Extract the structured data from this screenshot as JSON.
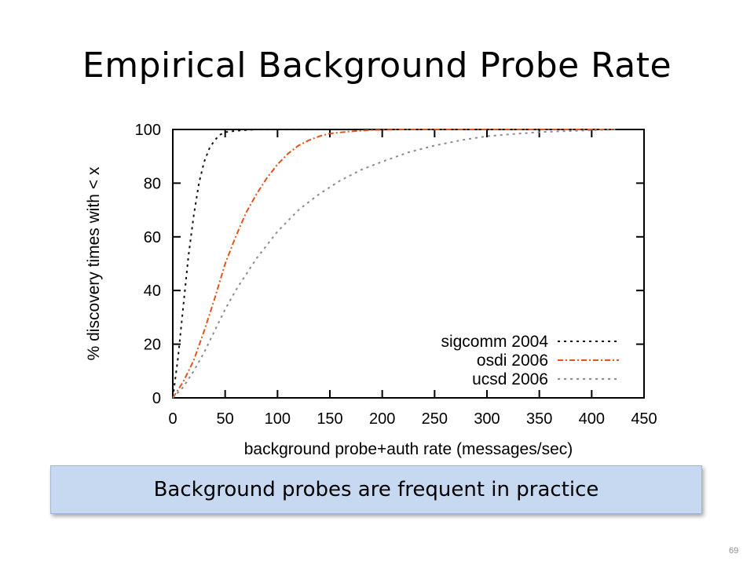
{
  "slide": {
    "title": "Empirical Background Probe Rate",
    "callout": "Background probes are frequent in practice",
    "page_number": "69"
  },
  "chart_data": {
    "type": "line",
    "xlabel": "background probe+auth rate (messages/sec)",
    "ylabel": "% discovery times with < x",
    "xlim": [
      0,
      450
    ],
    "ylim": [
      0,
      100
    ],
    "xticks": [
      0,
      50,
      100,
      150,
      200,
      250,
      300,
      350,
      400,
      450
    ],
    "yticks": [
      0,
      20,
      40,
      60,
      80,
      100
    ],
    "grid": false,
    "legend_position": "bottom-right",
    "series": [
      {
        "name": "sigcomm 2004",
        "color": "#111111",
        "dash": "dotted",
        "x": [
          0,
          5,
          10,
          15,
          20,
          25,
          30,
          35,
          40,
          45,
          50,
          60,
          70,
          80,
          100,
          150,
          200,
          300,
          420
        ],
        "y": [
          0,
          15,
          34,
          53,
          68,
          80,
          88,
          93,
          96,
          98,
          99,
          99.5,
          99.8,
          100,
          100,
          100,
          100,
          100,
          100
        ]
      },
      {
        "name": "osdi 2006",
        "color": "#e2531a",
        "dash": "dash-dot",
        "x": [
          0,
          10,
          20,
          30,
          40,
          50,
          60,
          70,
          80,
          90,
          100,
          110,
          120,
          130,
          140,
          150,
          170,
          190,
          220,
          300,
          420
        ],
        "y": [
          0,
          6,
          14,
          25,
          37,
          50,
          60,
          69,
          76,
          82,
          87,
          91,
          94,
          96,
          97.5,
          98.5,
          99.3,
          99.8,
          100,
          100,
          100
        ]
      },
      {
        "name": "ucsd 2006",
        "color": "#8a8a8a",
        "dash": "dotted",
        "x": [
          0,
          10,
          20,
          30,
          40,
          50,
          60,
          70,
          80,
          90,
          100,
          120,
          140,
          160,
          180,
          200,
          225,
          250,
          275,
          300,
          325,
          350,
          375,
          400,
          425
        ],
        "y": [
          0,
          4,
          10,
          17,
          25,
          33,
          40,
          46,
          52,
          57,
          62,
          70,
          76,
          81,
          85,
          88,
          91.5,
          94,
          96,
          97.5,
          98.3,
          99,
          99.4,
          99.7,
          100
        ]
      }
    ]
  }
}
